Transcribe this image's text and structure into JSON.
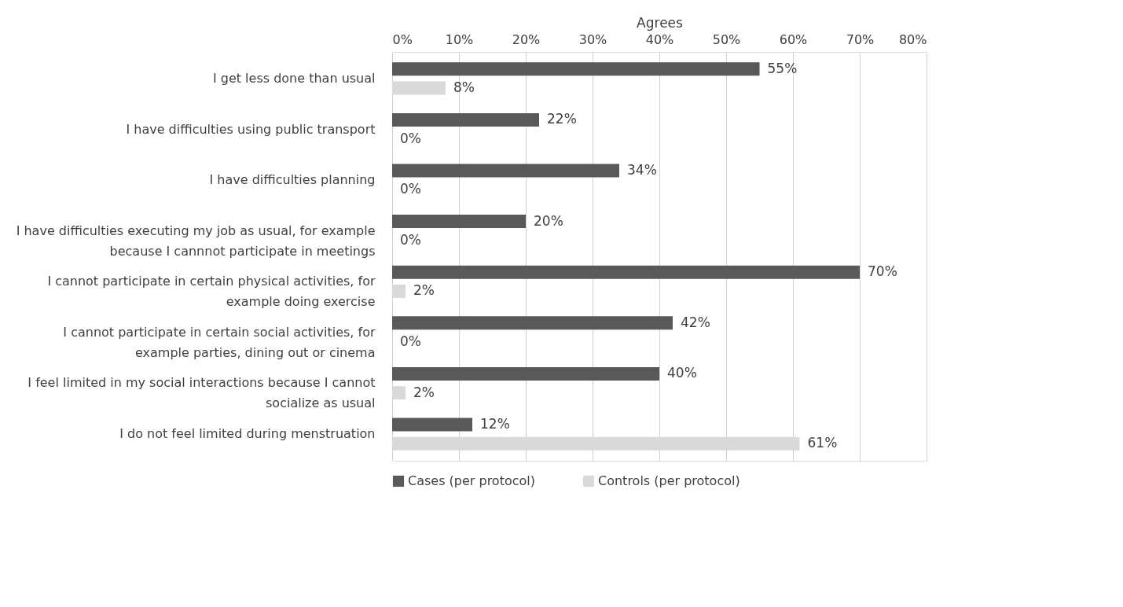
{
  "chart_data": {
    "type": "bar",
    "orientation": "horizontal",
    "xlabel": "Agrees",
    "categories": [
      "I get less done than usual",
      "I have difficulties using public transport",
      "I have difficulties planning",
      "I have difficulties executing my job as usual, for example because I cannnot participate in meetings",
      "I cannot participate in certain physical activities, for example doing exercise",
      "I cannot participate in certain social activities, for example parties, dining out or cinema",
      "I feel limited in my social interactions because I cannot socialize as usual",
      "I do not feel limited during menstruation"
    ],
    "series": [
      {
        "name": "Cases (per protocol)",
        "color": "#595959",
        "values": [
          55,
          22,
          34,
          20,
          70,
          42,
          40,
          12
        ],
        "value_labels": [
          "55%",
          "22%",
          "34%",
          "20%",
          "70%",
          "42%",
          "40%",
          "12%"
        ]
      },
      {
        "name": "Controls (per protocol)",
        "color": "#d9d9d9",
        "values": [
          8,
          0,
          0,
          0,
          2,
          0,
          2,
          61
        ],
        "value_labels": [
          "8%",
          "0%",
          "0%",
          "0%",
          "2%",
          "0%",
          "2%",
          "61%"
        ]
      }
    ],
    "xlim": [
      0,
      80
    ],
    "xticks": [
      {
        "value": 0,
        "label": "0%"
      },
      {
        "value": 10,
        "label": "10%"
      },
      {
        "value": 20,
        "label": "20%"
      },
      {
        "value": 30,
        "label": "30%"
      },
      {
        "value": 40,
        "label": "40%"
      },
      {
        "value": 50,
        "label": "50%"
      },
      {
        "value": 60,
        "label": "60%"
      },
      {
        "value": 70,
        "label": "70%"
      },
      {
        "value": 80,
        "label": "80%"
      }
    ],
    "grid": "x",
    "legend": "bottom"
  }
}
